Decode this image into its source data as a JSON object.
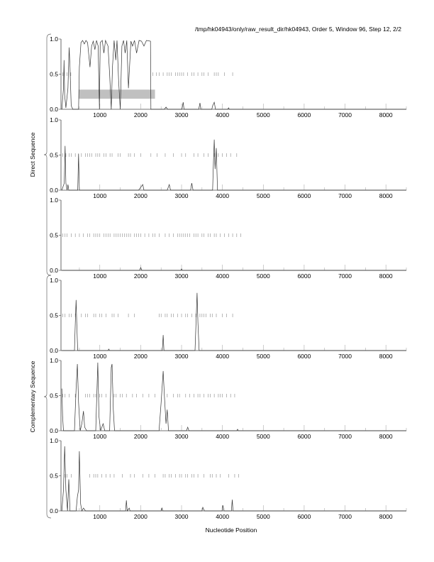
{
  "header": {
    "title": "/tmp/hk04943/only/raw_result_dir/hk04943, Order 5, Window 96, Step 12, 2/2"
  },
  "chart_data": {
    "type": "line",
    "xlabel": "Nucleotide Position",
    "xlim": [
      50,
      8500
    ],
    "ylim": [
      0,
      1
    ],
    "x_ticks": [
      1000,
      2000,
      3000,
      4000,
      5000,
      6000,
      7000,
      8000
    ],
    "y_ticks": [
      "0.0",
      "0.5",
      "1.0"
    ],
    "groups": [
      {
        "label": "Direct Sequence",
        "panels": [
          0,
          1,
          2
        ]
      },
      {
        "label": "Complementary Sequence",
        "panels": [
          3,
          4,
          5
        ]
      }
    ],
    "panels": [
      {
        "curve": [
          [
            70,
            0
          ],
          [
            110,
            0.3
          ],
          [
            125,
            0.7
          ],
          [
            140,
            0.2
          ],
          [
            170,
            0.02
          ],
          [
            220,
            0.3
          ],
          [
            250,
            0.88
          ],
          [
            270,
            0.6
          ],
          [
            300,
            0.05
          ],
          [
            340,
            0
          ],
          [
            480,
            0
          ],
          [
            500,
            0.6
          ],
          [
            540,
            0.95
          ],
          [
            580,
            0.98
          ],
          [
            620,
            0.93
          ],
          [
            660,
            0.98
          ],
          [
            700,
            0.95
          ],
          [
            760,
            0.6
          ],
          [
            800,
            0.9
          ],
          [
            840,
            0.97
          ],
          [
            880,
            0.85
          ],
          [
            920,
            0.98
          ],
          [
            960,
            0.9
          ],
          [
            990,
            0
          ],
          [
            1010,
            0.95
          ],
          [
            1060,
            0.98
          ],
          [
            1100,
            0.8
          ],
          [
            1140,
            0.98
          ],
          [
            1200,
            0.9
          ],
          [
            1240,
            0.5
          ],
          [
            1280,
            0
          ],
          [
            1310,
            0.6
          ],
          [
            1350,
            0.98
          ],
          [
            1390,
            0.7
          ],
          [
            1420,
            0.98
          ],
          [
            1460,
            0.4
          ],
          [
            1500,
            0
          ],
          [
            1540,
            0.9
          ],
          [
            1580,
            0.98
          ],
          [
            1620,
            0.8
          ],
          [
            1660,
            0.98
          ],
          [
            1700,
            0.3
          ],
          [
            1760,
            0.97
          ],
          [
            1800,
            0.9
          ],
          [
            1850,
            0.98
          ],
          [
            1900,
            0.8
          ],
          [
            1960,
            0.98
          ],
          [
            2020,
            0.97
          ],
          [
            2080,
            0.9
          ],
          [
            2140,
            0.98
          ],
          [
            2240,
            0.97
          ],
          [
            2250,
            0
          ],
          [
            2580,
            0
          ],
          [
            2620,
            0.03
          ],
          [
            2660,
            0
          ],
          [
            3010,
            0
          ],
          [
            3040,
            0.1
          ],
          [
            3060,
            0
          ],
          [
            3420,
            0
          ],
          [
            3450,
            0.09
          ],
          [
            3470,
            0
          ],
          [
            3740,
            0
          ],
          [
            3760,
            0.05
          ],
          [
            3800,
            0.1
          ],
          [
            3830,
            0
          ],
          [
            4130,
            0
          ],
          [
            4150,
            0.02
          ],
          [
            4170,
            0
          ],
          [
            8500,
            0
          ]
        ],
        "orf_ticks": [
          90,
          130,
          200,
          290,
          2300,
          2380,
          2450,
          2550,
          2650,
          2700,
          2750,
          2850,
          2900,
          2950,
          3000,
          3050,
          3150,
          3250,
          3300,
          3400,
          3500,
          3550,
          3650,
          3800,
          3850,
          3900,
          4050,
          4250
        ],
        "highlight": {
          "x": [
            480,
            2350
          ],
          "y": [
            0.15,
            0.28
          ],
          "color": "#c0c0c0"
        }
      },
      {
        "curve": [
          [
            70,
            0
          ],
          [
            130,
            0.1
          ],
          [
            150,
            0.63
          ],
          [
            170,
            0.1
          ],
          [
            200,
            0
          ],
          [
            220,
            0.08
          ],
          [
            240,
            0
          ],
          [
            460,
            0
          ],
          [
            480,
            0.52
          ],
          [
            500,
            0
          ],
          [
            1950,
            0
          ],
          [
            2050,
            0.08
          ],
          [
            2080,
            0
          ],
          [
            2650,
            0
          ],
          [
            2700,
            0.08
          ],
          [
            2730,
            0
          ],
          [
            3220,
            0
          ],
          [
            3250,
            0.1
          ],
          [
            3280,
            0
          ],
          [
            3760,
            0
          ],
          [
            3780,
            0.4
          ],
          [
            3800,
            0.72
          ],
          [
            3820,
            0.3
          ],
          [
            3850,
            0.6
          ],
          [
            3880,
            0
          ],
          [
            8500,
            0
          ]
        ],
        "orf_ticks": [
          90,
          170,
          250,
          300,
          400,
          550,
          650,
          700,
          750,
          800,
          900,
          950,
          1000,
          1100,
          1150,
          1250,
          1300,
          1450,
          1500,
          1700,
          1750,
          1850,
          2000,
          2250,
          2400,
          2600,
          2800,
          3000,
          3100,
          3300,
          3400,
          3550,
          3650,
          3800,
          3900,
          4000,
          4100,
          4200,
          4350
        ]
      },
      {
        "curve": [
          [
            70,
            0
          ],
          [
            1970,
            0
          ],
          [
            2000,
            0.04
          ],
          [
            2030,
            0
          ],
          [
            2980,
            0
          ],
          [
            3000,
            0.02
          ],
          [
            3020,
            0
          ],
          [
            8500,
            0
          ]
        ],
        "orf_ticks": [
          90,
          150,
          200,
          300,
          400,
          500,
          600,
          700,
          750,
          850,
          900,
          950,
          1000,
          1100,
          1150,
          1200,
          1250,
          1350,
          1400,
          1450,
          1500,
          1550,
          1600,
          1650,
          1700,
          1750,
          1850,
          1900,
          1950,
          2000,
          2100,
          2200,
          2300,
          2350,
          2450,
          2600,
          2700,
          2800,
          2900,
          2950,
          3000,
          3050,
          3100,
          3150,
          3200,
          3300,
          3350,
          3400,
          3500,
          3550,
          3650,
          3700,
          3800,
          3850,
          3950,
          4050,
          4150,
          4250,
          4350,
          4450
        ]
      },
      {
        "curve": [
          [
            70,
            0
          ],
          [
            380,
            0
          ],
          [
            400,
            0.4
          ],
          [
            420,
            0.72
          ],
          [
            440,
            0.3
          ],
          [
            460,
            0
          ],
          [
            1200,
            0
          ],
          [
            1220,
            0.02
          ],
          [
            1240,
            0
          ],
          [
            2530,
            0
          ],
          [
            2550,
            0.22
          ],
          [
            2570,
            0
          ],
          [
            3330,
            0
          ],
          [
            3360,
            0.5
          ],
          [
            3380,
            0.82
          ],
          [
            3400,
            0.4
          ],
          [
            3430,
            0
          ],
          [
            8500,
            0
          ]
        ],
        "orf_ticks": [
          90,
          150,
          250,
          300,
          400,
          550,
          650,
          700,
          850,
          900,
          1000,
          1050,
          1150,
          1300,
          1350,
          1450,
          1700,
          1850,
          2450,
          2500,
          2600,
          2650,
          2750,
          2800,
          2900,
          3000,
          3100,
          3150,
          3250,
          3350,
          3450,
          3500,
          3550,
          3600,
          3700,
          3750,
          3850,
          4000,
          4100,
          4250
        ]
      },
      {
        "curve": [
          [
            70,
            0.6
          ],
          [
            90,
            0.2
          ],
          [
            110,
            0
          ],
          [
            380,
            0
          ],
          [
            420,
            0.6
          ],
          [
            450,
            0.95
          ],
          [
            480,
            0.4
          ],
          [
            520,
            0
          ],
          [
            560,
            0.1
          ],
          [
            600,
            0.28
          ],
          [
            630,
            0.05
          ],
          [
            680,
            0
          ],
          [
            900,
            0
          ],
          [
            950,
            0.97
          ],
          [
            980,
            0.2
          ],
          [
            1020,
            0
          ],
          [
            1080,
            0.1
          ],
          [
            1120,
            0
          ],
          [
            1240,
            0
          ],
          [
            1280,
            0.9
          ],
          [
            1300,
            0.95
          ],
          [
            1330,
            0.3
          ],
          [
            1360,
            0
          ],
          [
            2450,
            0
          ],
          [
            2500,
            0.4
          ],
          [
            2550,
            0.85
          ],
          [
            2580,
            0.5
          ],
          [
            2620,
            0.1
          ],
          [
            2650,
            0.3
          ],
          [
            2680,
            0
          ],
          [
            3120,
            0
          ],
          [
            3150,
            0.05
          ],
          [
            3180,
            0
          ],
          [
            4350,
            0
          ],
          [
            4370,
            0.02
          ],
          [
            4390,
            0
          ],
          [
            8500,
            0
          ]
        ],
        "orf_ticks": [
          90,
          150,
          250,
          400,
          650,
          700,
          750,
          850,
          900,
          1000,
          1050,
          1150,
          1350,
          1400,
          1500,
          1550,
          1650,
          1800,
          1900,
          2050,
          2200,
          2350,
          2650,
          2800,
          2900,
          2950,
          3100,
          3200,
          3300,
          3400,
          3450,
          3550,
          3650,
          3700,
          3800,
          3900,
          3950,
          4000,
          4100,
          4200,
          4300
        ]
      },
      {
        "curve": [
          [
            70,
            0
          ],
          [
            110,
            0.3
          ],
          [
            140,
            0.92
          ],
          [
            170,
            0.3
          ],
          [
            210,
            0
          ],
          [
            240,
            0.45
          ],
          [
            270,
            0
          ],
          [
            420,
            0
          ],
          [
            450,
            0.2
          ],
          [
            480,
            0.3
          ],
          [
            500,
            0.85
          ],
          [
            530,
            0.1
          ],
          [
            560,
            0
          ],
          [
            600,
            0.04
          ],
          [
            650,
            0
          ],
          [
            1630,
            0
          ],
          [
            1650,
            0.15
          ],
          [
            1670,
            0
          ],
          [
            1720,
            0.04
          ],
          [
            1740,
            0
          ],
          [
            2500,
            0
          ],
          [
            2520,
            0.04
          ],
          [
            2540,
            0
          ],
          [
            3500,
            0
          ],
          [
            3520,
            0.05
          ],
          [
            3560,
            0
          ],
          [
            3990,
            0
          ],
          [
            4010,
            0.08
          ],
          [
            4040,
            0
          ],
          [
            4220,
            0
          ],
          [
            4240,
            0.16
          ],
          [
            4260,
            0
          ],
          [
            8500,
            0
          ]
        ],
        "orf_ticks": [
          150,
          200,
          300,
          750,
          850,
          900,
          950,
          1050,
          1150,
          1250,
          1350,
          1550,
          1750,
          1850,
          2050,
          2200,
          2350,
          2550,
          2600,
          2700,
          2750,
          2850,
          2950,
          3000,
          3100,
          3150,
          3250,
          3300,
          3400,
          3550,
          3700,
          3750,
          3850,
          3950,
          4150,
          4300,
          4400
        ]
      }
    ]
  }
}
